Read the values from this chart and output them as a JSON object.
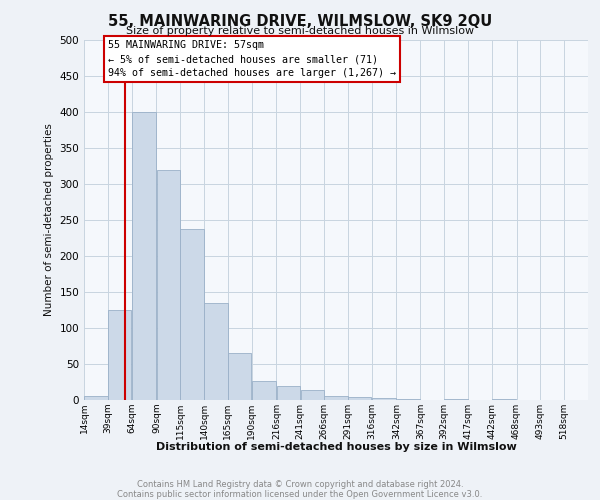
{
  "title": "55, MAINWARING DRIVE, WILMSLOW, SK9 2QU",
  "subtitle": "Size of property relative to semi-detached houses in Wilmslow",
  "xlabel": "Distribution of semi-detached houses by size in Wilmslow",
  "ylabel": "Number of semi-detached properties",
  "footnote": "Contains HM Land Registry data © Crown copyright and database right 2024.\nContains public sector information licensed under the Open Government Licence v3.0.",
  "annotation_line1": "55 MAINWARING DRIVE: 57sqm",
  "annotation_line2": "← 5% of semi-detached houses are smaller (71)",
  "annotation_line3": "94% of semi-detached houses are larger (1,267) →",
  "property_size": 57,
  "bar_color": "#ccd9e8",
  "bar_edgecolor": "#9ab0c8",
  "marker_color": "#cc0000",
  "ylim": [
    0,
    500
  ],
  "yticks": [
    0,
    50,
    100,
    150,
    200,
    250,
    300,
    350,
    400,
    450,
    500
  ],
  "bin_edges": [
    14,
    39,
    64,
    90,
    115,
    140,
    165,
    190,
    216,
    241,
    266,
    291,
    316,
    342,
    367,
    392,
    417,
    442,
    468,
    493,
    518,
    543
  ],
  "tick_labels": [
    "14sqm",
    "39sqm",
    "64sqm",
    "90sqm",
    "115sqm",
    "140sqm",
    "165sqm",
    "190sqm",
    "216sqm",
    "241sqm",
    "266sqm",
    "291sqm",
    "316sqm",
    "342sqm",
    "367sqm",
    "392sqm",
    "417sqm",
    "442sqm",
    "468sqm",
    "493sqm",
    "518sqm"
  ],
  "values": [
    5,
    125,
    400,
    320,
    238,
    135,
    65,
    27,
    20,
    14,
    5,
    4,
    3,
    1,
    0,
    1,
    0,
    1,
    0,
    0,
    0
  ],
  "background_color": "#eef2f7",
  "plot_bg_color": "#f5f8fc",
  "grid_color": "#c8d4e0"
}
